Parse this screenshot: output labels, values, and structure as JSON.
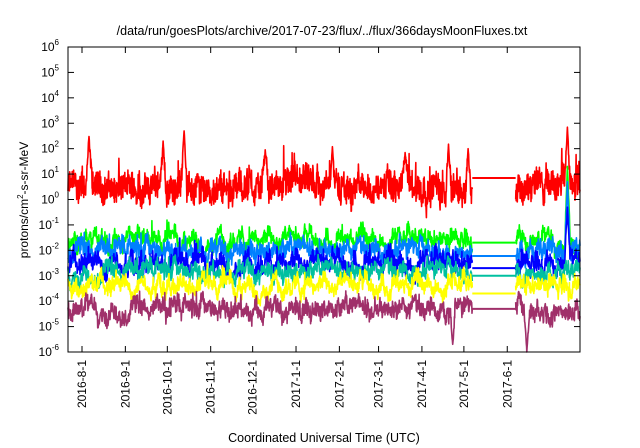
{
  "chart_data": {
    "type": "line",
    "title": "/data/run/goesPlots/archive/2017-07-23/flux/../flux/366daysMoonFluxes.txt",
    "xlabel": "Coordinated Universal Time (UTC)",
    "ylabel": {
      "prefix": "protons/cm",
      "sup": "2",
      "suffix": "-s-sr-MeV"
    },
    "yscale": "log",
    "ylim": [
      1e-06,
      1000000.0
    ],
    "xlim": [
      "2016-07-22",
      "2017-07-23"
    ],
    "xtick_labels": [
      "2016-8-1",
      "2016-9-1",
      "2016-10-1",
      "2016-11-1",
      "2016-12-1",
      "2017-1-1",
      "2017-2-1",
      "2017-3-1",
      "2017-4-1",
      "2017-5-1",
      "2017-6-1"
    ],
    "xtick_dates": [
      "2016-08-01",
      "2016-09-01",
      "2016-10-01",
      "2016-11-01",
      "2016-12-01",
      "2017-01-01",
      "2017-02-01",
      "2017-03-01",
      "2017-04-01",
      "2017-05-01",
      "2017-06-01"
    ],
    "ytick_exponents": [
      -6,
      -5,
      -4,
      -3,
      -2,
      -1,
      0,
      1,
      2,
      3,
      4,
      5,
      6
    ],
    "ytick_base": "10",
    "data_gap": {
      "start": "2017-05-07",
      "end": "2017-06-07"
    },
    "series": [
      {
        "color": "#ff0000",
        "gap_value": 7,
        "level": 3,
        "spread": 0.5,
        "spikes": [
          [
            "2016-08-06",
            300
          ],
          [
            "2016-09-28",
            200
          ],
          [
            "2016-10-13",
            500
          ],
          [
            "2016-12-10",
            90
          ],
          [
            "2017-01-27",
            120
          ],
          [
            "2017-03-20",
            70
          ],
          [
            "2017-04-20",
            150
          ],
          [
            "2017-05-04",
            100
          ],
          [
            "2017-07-14",
            700
          ]
        ]
      },
      {
        "color": "#00ff00",
        "gap_value": 0.02,
        "level": 0.025,
        "spread": 0.2,
        "spikes": [
          [
            "2017-07-14",
            20
          ]
        ]
      },
      {
        "color": "#0080ff",
        "gap_value": 0.006,
        "level": 0.01,
        "spread": 0.25,
        "spikes": [
          [
            "2017-07-14",
            5
          ]
        ]
      },
      {
        "color": "#0000ff",
        "gap_value": 0.002,
        "level": 0.003,
        "spread": 0.25,
        "spikes": [
          [
            "2017-07-14",
            0.5
          ]
        ]
      },
      {
        "color": "#00c0a0",
        "gap_value": 0.001,
        "level": 0.0015,
        "spread": 0.2,
        "spikes": []
      },
      {
        "color": "#ffff00",
        "gap_value": 0.0002,
        "level": 0.0004,
        "spread": 0.2,
        "spikes": []
      },
      {
        "color": "#a0306a",
        "gap_value": 5e-05,
        "level": 5e-05,
        "spread": 0.25,
        "spikes": [
          [
            "2017-04-23",
            2e-06
          ],
          [
            "2017-06-15",
            1e-06
          ]
        ]
      }
    ],
    "grid": false,
    "legend": "none"
  }
}
